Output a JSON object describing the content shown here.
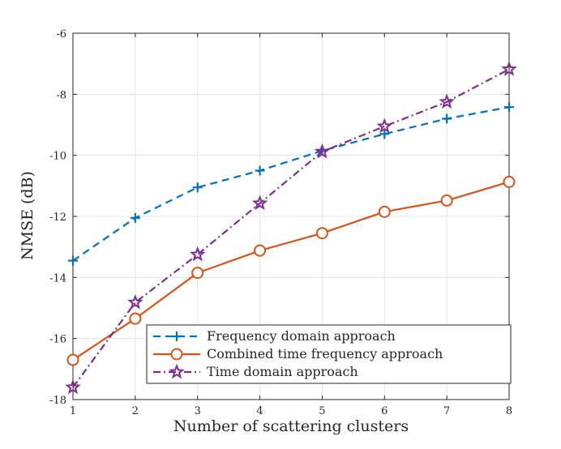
{
  "chart_data": {
    "type": "line",
    "title": "",
    "xlabel": "Number of scattering clusters",
    "ylabel": "NMSE (dB)",
    "xlim": [
      1,
      8
    ],
    "ylim": [
      -18,
      -6
    ],
    "xticks": [
      1,
      2,
      3,
      4,
      5,
      6,
      7,
      8
    ],
    "yticks": [
      -18,
      -16,
      -14,
      -12,
      -10,
      -8,
      -6
    ],
    "grid": true,
    "legend_position": "bottom-right",
    "x": [
      1,
      2,
      3,
      4,
      5,
      6,
      7,
      8
    ],
    "series": [
      {
        "name": "Frequency domain approach",
        "values": [
          -13.45,
          -12.05,
          -11.05,
          -10.5,
          -9.85,
          -9.3,
          -8.8,
          -8.42
        ],
        "color": "#0072BD",
        "linestyle": "dashed",
        "marker": "plus"
      },
      {
        "name": "Combined time frequency approach",
        "values": [
          -16.7,
          -15.35,
          -13.85,
          -13.12,
          -12.55,
          -11.85,
          -11.48,
          -10.87
        ],
        "color": "#D95319",
        "linestyle": "solid",
        "marker": "circle"
      },
      {
        "name": "Time domain approach",
        "values": [
          -17.6,
          -14.82,
          -13.25,
          -11.57,
          -9.88,
          -9.05,
          -8.25,
          -7.18
        ],
        "color": "#7E2F8E",
        "linestyle": "dashdot",
        "marker": "star"
      }
    ]
  }
}
